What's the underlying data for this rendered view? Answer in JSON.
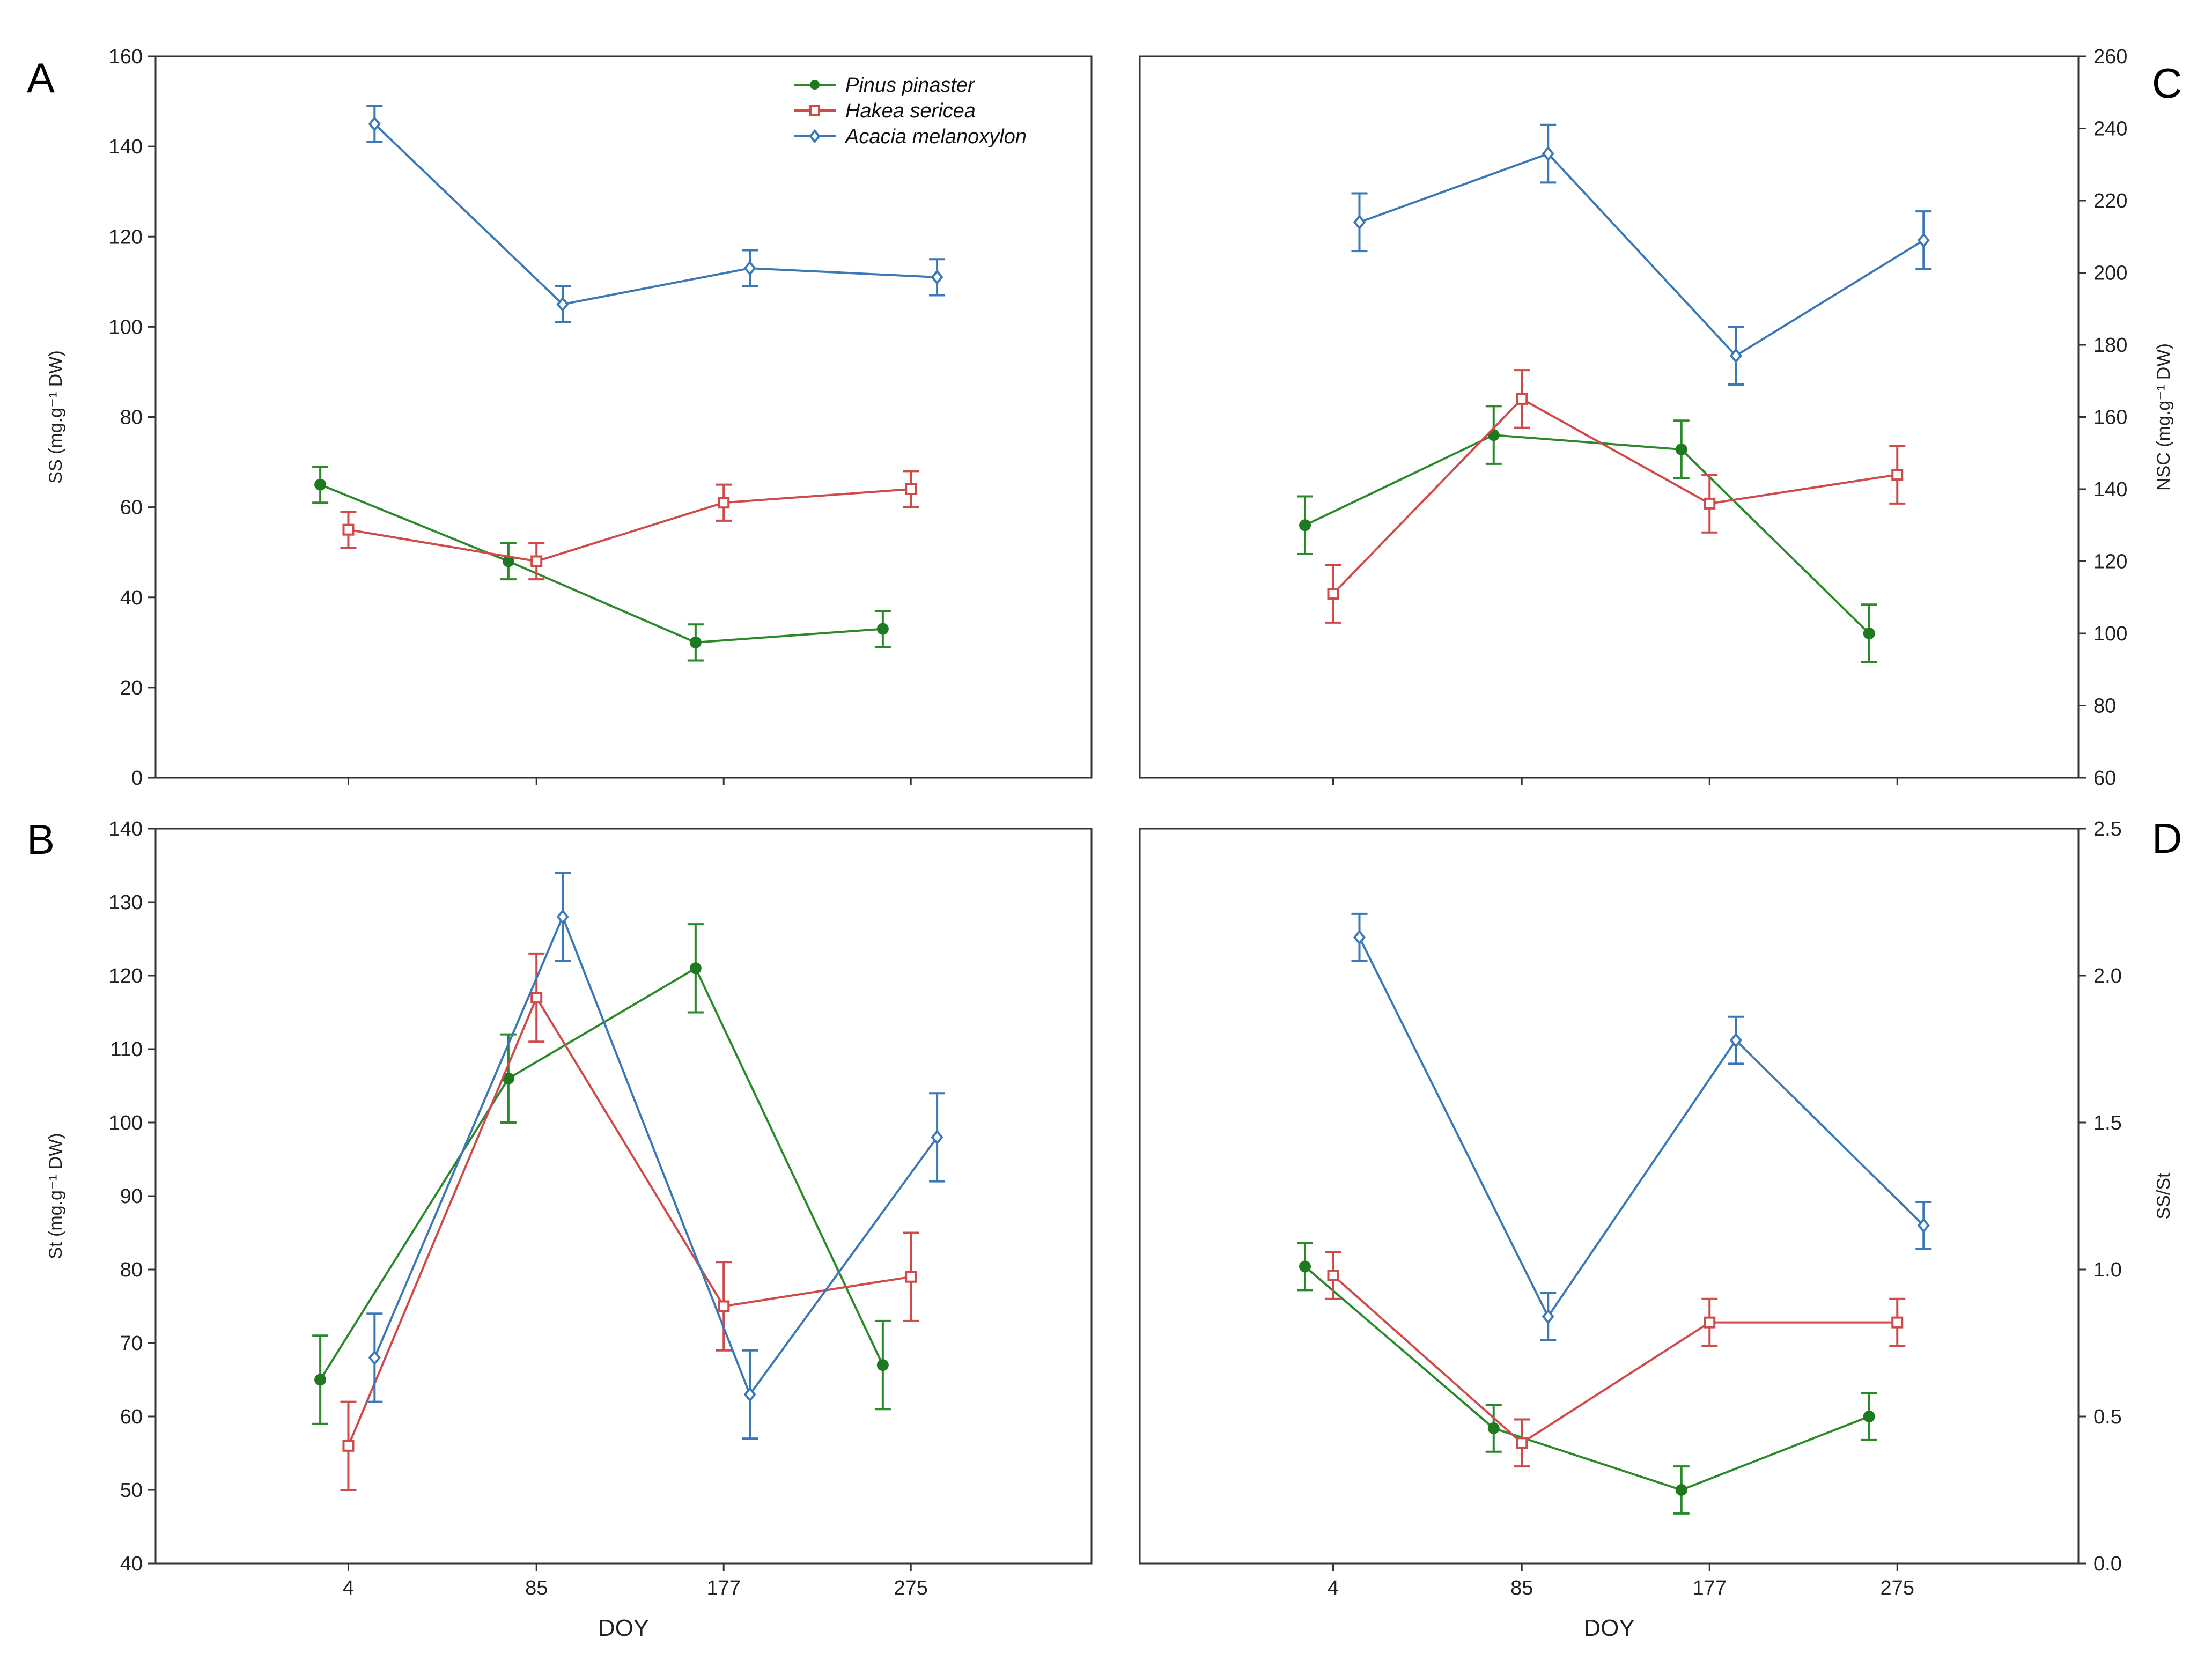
{
  "figure": {
    "xlabel": "DOY",
    "species": [
      {
        "name": "Pinus pinaster",
        "color": "#2a8a2a",
        "marker": "dot"
      },
      {
        "name": "Hakea sericea",
        "color": "#d04a4a",
        "marker": "square"
      },
      {
        "name": "Acacia melanoxylon",
        "color": "#3a78b8",
        "marker": "diamond"
      }
    ]
  },
  "chart_data": [
    {
      "panel": "A",
      "type": "line",
      "ylabel": "SS (mg.g⁻¹ DW)",
      "xlabel": "",
      "categories": [
        "4",
        "85",
        "177",
        "275"
      ],
      "ylim": [
        0,
        160
      ],
      "ytick_step": 20,
      "yaxis_side": "left",
      "show_xticks": false,
      "series": [
        {
          "name": "Pinus pinaster",
          "values": [
            65,
            48,
            30,
            33
          ],
          "errors": [
            4,
            4,
            4,
            4
          ]
        },
        {
          "name": "Hakea sericea",
          "values": [
            55,
            48,
            61,
            64
          ],
          "errors": [
            4,
            4,
            4,
            4
          ]
        },
        {
          "name": "Acacia melanoxylon",
          "values": [
            145,
            105,
            113,
            111
          ],
          "errors": [
            4,
            4,
            4,
            4
          ]
        }
      ]
    },
    {
      "panel": "C",
      "type": "line",
      "ylabel": "NSC (mg.g⁻¹ DW)",
      "xlabel": "",
      "categories": [
        "4",
        "85",
        "177",
        "275"
      ],
      "ylim": [
        60,
        260
      ],
      "ytick_step": 20,
      "yaxis_side": "right",
      "show_xticks": false,
      "series": [
        {
          "name": "Pinus pinaster",
          "values": [
            130,
            155,
            151,
            100
          ],
          "errors": [
            8,
            8,
            8,
            8
          ]
        },
        {
          "name": "Hakea sericea",
          "values": [
            111,
            165,
            136,
            144
          ],
          "errors": [
            8,
            8,
            8,
            8
          ]
        },
        {
          "name": "Acacia melanoxylon",
          "values": [
            214,
            233,
            177,
            209
          ],
          "errors": [
            8,
            8,
            8,
            8
          ]
        }
      ]
    },
    {
      "panel": "B",
      "type": "line",
      "ylabel": "St (mg.g⁻¹ DW)",
      "xlabel": "DOY",
      "categories": [
        "4",
        "85",
        "177",
        "275"
      ],
      "ylim": [
        40,
        140
      ],
      "ytick_step": 10,
      "yaxis_side": "left",
      "show_xticks": true,
      "series": [
        {
          "name": "Pinus pinaster",
          "values": [
            65,
            106,
            121,
            67
          ],
          "errors": [
            6,
            6,
            6,
            6
          ]
        },
        {
          "name": "Hakea sericea",
          "values": [
            56,
            117,
            75,
            79
          ],
          "errors": [
            6,
            6,
            6,
            6
          ]
        },
        {
          "name": "Acacia melanoxylon",
          "values": [
            68,
            128,
            63,
            98
          ],
          "errors": [
            6,
            6,
            6,
            6
          ]
        }
      ]
    },
    {
      "panel": "D",
      "type": "line",
      "ylabel": "SS/St",
      "xlabel": "DOY",
      "categories": [
        "4",
        "85",
        "177",
        "275"
      ],
      "ylim": [
        0,
        2.5
      ],
      "ytick_step": 0.5,
      "yaxis_side": "right",
      "show_xticks": true,
      "series": [
        {
          "name": "Pinus pinaster",
          "values": [
            1.01,
            0.46,
            0.25,
            0.5
          ],
          "errors": [
            0.08,
            0.08,
            0.08,
            0.08
          ]
        },
        {
          "name": "Hakea sericea",
          "values": [
            0.98,
            0.41,
            0.82,
            0.82
          ],
          "errors": [
            0.08,
            0.08,
            0.08,
            0.08
          ]
        },
        {
          "name": "Acacia melanoxylon",
          "values": [
            2.13,
            0.84,
            1.78,
            1.15
          ],
          "errors": [
            0.08,
            0.08,
            0.08,
            0.08
          ]
        }
      ]
    }
  ]
}
